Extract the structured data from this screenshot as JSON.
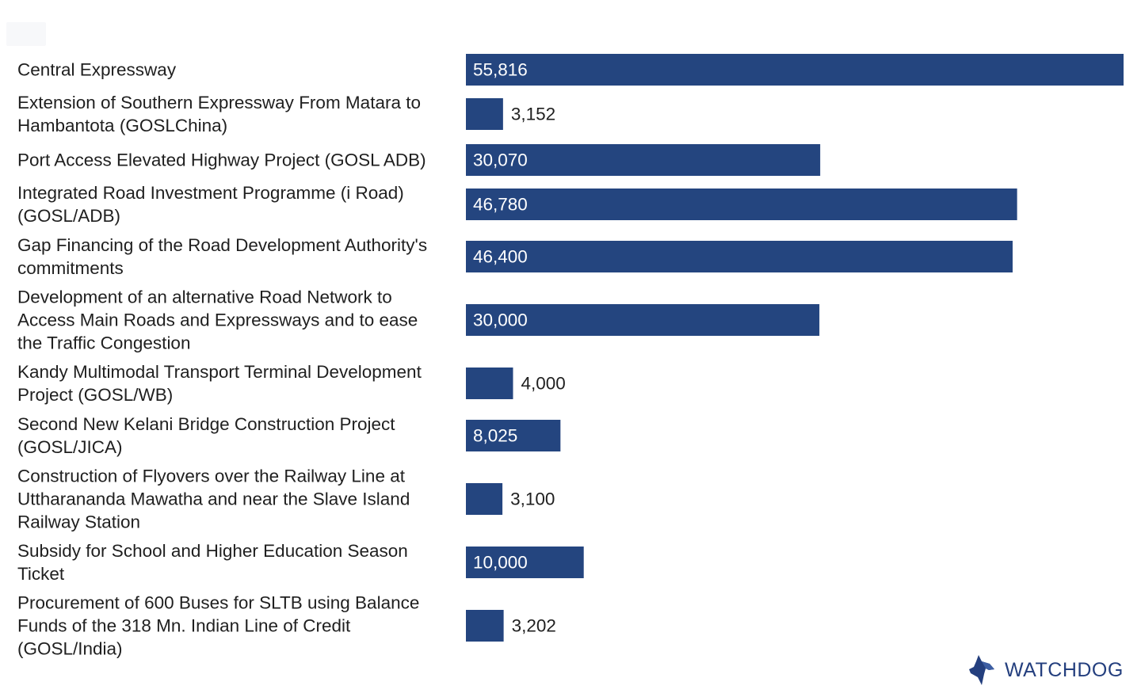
{
  "chart_data": {
    "type": "bar",
    "orientation": "horizontal",
    "bar_color": "#24457f",
    "categories": [
      [
        "Central Expressway"
      ],
      [
        "Extension of Southern Expressway From Matara to",
        "Hambantota (GOSLChina)"
      ],
      [
        "Port Access Elevated Highway Project (GOSL  ADB)"
      ],
      [
        "Integrated Road Investment Programme  (i Road)",
        "(GOSL/ADB)"
      ],
      [
        "Gap Financing of the Road Development Authority's",
        "commitments"
      ],
      [
        "Development of an alternative Road Network to",
        "Access Main Roads and Expressways and to ease",
        "the Traffic Congestion"
      ],
      [
        "Kandy Multimodal Transport Terminal Development",
        "Project (GOSL/WB)"
      ],
      [
        "Second New Kelani Bridge Construction Project",
        "(GOSL/JICA)"
      ],
      [
        "Construction of Flyovers over the Railway Line at",
        "Uttharananda Mawatha and near the Slave Island",
        "Railway Station"
      ],
      [
        "Subsidy for School and Higher Education Season",
        "Ticket"
      ],
      [
        "Procurement of 600 Buses for SLTB using Balance",
        "Funds of the 318 Mn. Indian Line of Credit",
        "(GOSL/India)"
      ]
    ],
    "values": [
      55816,
      3152,
      30070,
      46780,
      46400,
      30000,
      4000,
      8025,
      3100,
      10000,
      3202
    ],
    "value_labels": [
      "55,816",
      "3,152",
      "30,070",
      "46,780",
      "46,400",
      "30,000",
      "4,000",
      "8,025",
      "3,100",
      "10,000",
      "3,202"
    ],
    "xlim": [
      0,
      55816
    ],
    "grid": false,
    "legend": "none"
  },
  "brand": {
    "name": "WATCHDOG",
    "icon": "dog-head-icon",
    "color": "#243f7e"
  }
}
